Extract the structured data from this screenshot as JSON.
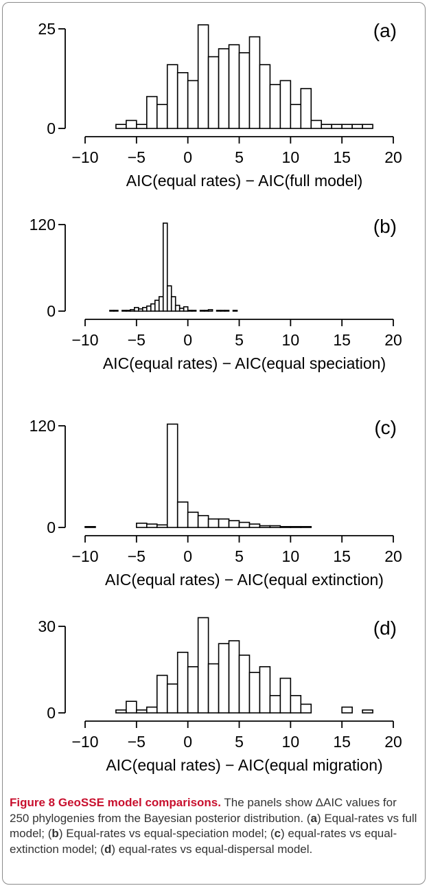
{
  "colors": {
    "bar_fill": "#ffffff",
    "bar_stroke": "#000000",
    "caption_accent": "#c8102e",
    "frame_border": "#8a8a8a"
  },
  "chart_data": [
    {
      "type": "bar",
      "panel_label": "(a)",
      "xlabel": "AIC(equal rates) − AIC(full model)",
      "xlim": [
        -10,
        20
      ],
      "xticks": [
        -10,
        -5,
        0,
        5,
        10,
        15,
        20
      ],
      "xtick_labels": [
        "−10",
        "−5",
        "0",
        "5",
        "10",
        "15",
        "20"
      ],
      "ylim": [
        0,
        25
      ],
      "yticks": [
        0,
        25
      ],
      "bin_width": 1,
      "bin_start": -7,
      "values": [
        1,
        2,
        1,
        8,
        6,
        16,
        14,
        12,
        26,
        18,
        20,
        21,
        19,
        23,
        16,
        11,
        12,
        6,
        10,
        2,
        1,
        1,
        1,
        1,
        1
      ]
    },
    {
      "type": "bar",
      "panel_label": "(b)",
      "xlabel": "AIC(equal rates) − AIC(equal speciation)",
      "xlim": [
        -10,
        20
      ],
      "xticks": [
        -10,
        -5,
        0,
        5,
        10,
        15,
        20
      ],
      "xtick_labels": [
        "−10",
        "−5",
        "0",
        "5",
        "10",
        "15",
        "20"
      ],
      "ylim": [
        0,
        120
      ],
      "yticks": [
        0,
        120
      ],
      "bin_width": 0.4,
      "bin_start": -7.6,
      "values": [
        1,
        1,
        0,
        1,
        1,
        2,
        5,
        3,
        5,
        7,
        10,
        15,
        20,
        122,
        35,
        20,
        8,
        4,
        6,
        1,
        1,
        0,
        1,
        1,
        2,
        0,
        1,
        1,
        1,
        0,
        1
      ]
    },
    {
      "type": "bar",
      "panel_label": "(c)",
      "xlabel": "AIC(equal rates) − AIC(equal extinction)",
      "xlim": [
        -10,
        20
      ],
      "xticks": [
        -10,
        -5,
        0,
        5,
        10,
        15,
        20
      ],
      "xtick_labels": [
        "−10",
        "−5",
        "0",
        "5",
        "10",
        "15",
        "20"
      ],
      "ylim": [
        0,
        120
      ],
      "yticks": [
        0,
        120
      ],
      "bin_width": 1,
      "bin_start": -10,
      "values": [
        1,
        0,
        0,
        0,
        0,
        5,
        4,
        3,
        122,
        30,
        18,
        14,
        10,
        10,
        8,
        6,
        4,
        2,
        2,
        1,
        1,
        1
      ]
    },
    {
      "type": "bar",
      "panel_label": "(d)",
      "xlabel": "AIC(equal rates) − AIC(equal migration)",
      "xlim": [
        -10,
        20
      ],
      "xticks": [
        -10,
        -5,
        0,
        5,
        10,
        15,
        20
      ],
      "xtick_labels": [
        "−10",
        "−5",
        "0",
        "5",
        "10",
        "15",
        "20"
      ],
      "ylim": [
        0,
        30
      ],
      "yticks": [
        0,
        30
      ],
      "bin_width": 1,
      "bin_start": -7,
      "values": [
        1,
        4,
        1,
        2,
        13,
        10,
        21,
        16,
        33,
        17,
        24,
        25,
        20,
        14,
        16,
        6,
        12,
        6,
        3,
        0,
        0,
        0,
        2,
        0,
        1
      ]
    }
  ],
  "caption": {
    "figure_label": "Figure 8",
    "title": "GeoSSE model comparisons.",
    "text_1": " The panels show ΔAIC values for 250 phylogenies from the Bayesian posterior distribution. (",
    "a": "a",
    "text_2": ") Equal-rates vs full model; (",
    "b": "b",
    "text_3": ") Equal-rates vs equal-speciation model; (",
    "c": "c",
    "text_4": ") equal-rates vs equal-extinction model; (",
    "d": "d",
    "text_5": ") equal-rates vs equal-dispersal model."
  }
}
